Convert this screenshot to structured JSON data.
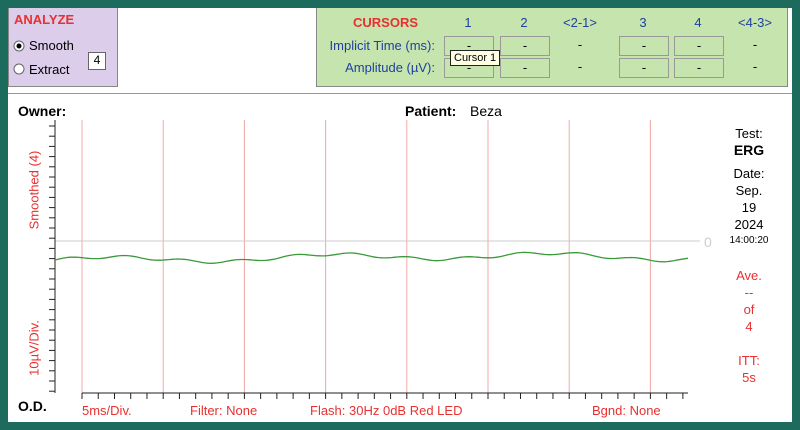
{
  "analyze": {
    "title": "ANALYZE",
    "options": [
      {
        "label": "Smooth",
        "checked": true
      },
      {
        "label": "Extract",
        "checked": false
      }
    ],
    "extract_value": "4"
  },
  "cursors": {
    "title": "CURSORS",
    "columns": [
      "1",
      "2",
      "<2-1>",
      "3",
      "4",
      "<4-3>"
    ],
    "rows": [
      {
        "label": "Implicit Time (ms):",
        "cells": [
          "-",
          "-",
          "-",
          "-",
          "-",
          "-"
        ]
      },
      {
        "label": "Amplitude (µV):",
        "cells": [
          "-",
          "-",
          "-",
          "-",
          "-",
          "-"
        ]
      }
    ],
    "tooltip": "Cursor 1"
  },
  "plot": {
    "owner_label": "Owner:",
    "patient_label": "Patient:",
    "patient": "Beza",
    "y_label_top": "Smoothed (4)",
    "y_label_bottom": "10µV/Div.",
    "zero_label": "0",
    "eye": "O.D.",
    "footer": [
      "5ms/Div.",
      "Filter: None",
      "Flash: 30Hz 0dB Red LED",
      "Bgnd: None"
    ],
    "side": {
      "test_label": "Test:",
      "test": "ERG",
      "date_label": "Date:",
      "month": "Sep.",
      "day": "19",
      "year": "2024",
      "time": "14:00:20",
      "ave_label": "Ave.",
      "ave": "--",
      "of": "of",
      "ave_total": "4",
      "itt_label": "ITT:",
      "itt": "5s"
    }
  }
}
